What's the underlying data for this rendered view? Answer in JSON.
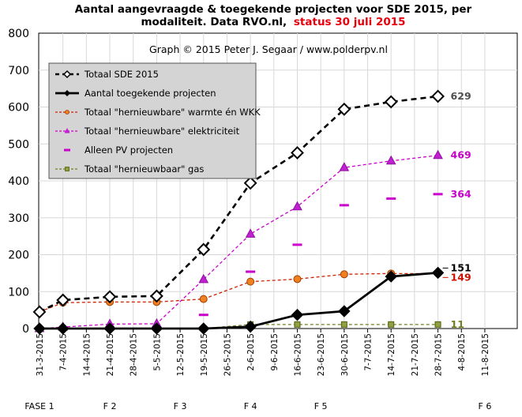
{
  "chart_data": {
    "type": "line",
    "title_line1": "Aantal aangevraagde & toegekende projecten voor SDE 2015, per",
    "title_line2": "modaliteit. Data RVO.nl,",
    "title_status": "status 30 juli 2015",
    "credit": "Graph © 2015 Peter J. Segaar / www.polderpv.nl",
    "ylim": [
      0,
      800
    ],
    "yticks": [
      "0",
      "100",
      "200",
      "300",
      "400",
      "500",
      "600",
      "700",
      "800"
    ],
    "grid": true,
    "legend_position": "top-left",
    "x_ticks": [
      "31-3-2015",
      "7-4-2015",
      "14-4-2015",
      "21-4-2015",
      "28-4-2015",
      "5-5-2015",
      "12-5-2015",
      "19-5-2015",
      "26-5-2015",
      "2-6-2015",
      "9-6-2015",
      "16-6-2015",
      "23-6-2015",
      "30-6-2015",
      "7-7-2015",
      "14-7-2015",
      "21-7-2015",
      "28-7-2015",
      "4-8-2015",
      "11-8-2015"
    ],
    "phases": [
      {
        "label": "FASE 1",
        "date": "31-3-2015"
      },
      {
        "label": "F 2",
        "date": "21-4-2015"
      },
      {
        "label": "F 3",
        "date": "12-5-2015"
      },
      {
        "label": "F 4",
        "date": "2-6-2015"
      },
      {
        "label": "F 5",
        "date": "23-6-2015"
      },
      {
        "label": "F 6",
        "date": "11-8-2015"
      }
    ],
    "series": [
      {
        "name": "Totaal SDE 2015",
        "color": "#000000",
        "style": "dashed",
        "marker": "diamond-open",
        "x": [
          "31-3-2015",
          "7-4-2015",
          "21-4-2015",
          "5-5-2015",
          "19-5-2015",
          "2-6-2015",
          "16-6-2015",
          "30-6-2015",
          "14-7-2015",
          "28-7-2015"
        ],
        "values": [
          45,
          77,
          86,
          88,
          214,
          394,
          476,
          594,
          614,
          629
        ],
        "end_label": "629",
        "end_label_color": "#505050"
      },
      {
        "name": "Aantal toegekende projecten",
        "color": "#000000",
        "style": "solid",
        "marker": "diamond-filled",
        "x": [
          "31-3-2015",
          "7-4-2015",
          "21-4-2015",
          "5-5-2015",
          "19-5-2015",
          "2-6-2015",
          "16-6-2015",
          "30-6-2015",
          "14-7-2015",
          "28-7-2015"
        ],
        "values": [
          0,
          0,
          0,
          0,
          0,
          5,
          37,
          47,
          141,
          151
        ],
        "end_label": "151",
        "end_label_color": "#000000"
      },
      {
        "name": "Totaal \"hernieuwbare\" warmte én WKK",
        "color": "#cc2200",
        "style": "dashed",
        "marker": "circle-orange",
        "x": [
          "31-3-2015",
          "7-4-2015",
          "21-4-2015",
          "5-5-2015",
          "19-5-2015",
          "2-6-2015",
          "16-6-2015",
          "30-6-2015",
          "14-7-2015",
          "28-7-2015"
        ],
        "values": [
          45,
          70,
          72,
          72,
          80,
          127,
          134,
          147,
          149,
          149
        ],
        "end_label": "149",
        "end_label_color": "#cc1100"
      },
      {
        "name": "Totaal \"hernieuwbare\" elektriciteit",
        "color": "#cc00cc",
        "style": "dashed",
        "marker": "triangle",
        "x": [
          "31-3-2015",
          "7-4-2015",
          "21-4-2015",
          "5-5-2015",
          "19-5-2015",
          "2-6-2015",
          "16-6-2015",
          "30-6-2015",
          "14-7-2015",
          "28-7-2015"
        ],
        "values": [
          0,
          4,
          12,
          13,
          133,
          256,
          330,
          436,
          454,
          469
        ],
        "end_label": "469",
        "end_label_color": "#cc00cc"
      },
      {
        "name": "Alleen PV projecten",
        "color": "#cc00cc",
        "style": "none",
        "marker": "dash",
        "x": [
          "19-5-2015",
          "2-6-2015",
          "16-6-2015",
          "30-6-2015",
          "14-7-2015",
          "28-7-2015"
        ],
        "values": [
          37,
          154,
          227,
          334,
          352,
          364
        ],
        "end_label": "364",
        "end_label_color": "#cc00cc"
      },
      {
        "name": "Totaal \"hernieuwbaar\" gas",
        "color": "#708020",
        "style": "dashed",
        "marker": "square-olive",
        "x": [
          "31-3-2015",
          "7-4-2015",
          "21-4-2015",
          "5-5-2015",
          "19-5-2015",
          "2-6-2015",
          "16-6-2015",
          "30-6-2015",
          "14-7-2015",
          "28-7-2015"
        ],
        "values": [
          0,
          0,
          0,
          0,
          0,
          11,
          11,
          11,
          11,
          11
        ],
        "end_label": "11",
        "end_label_color": "#708020"
      }
    ]
  }
}
